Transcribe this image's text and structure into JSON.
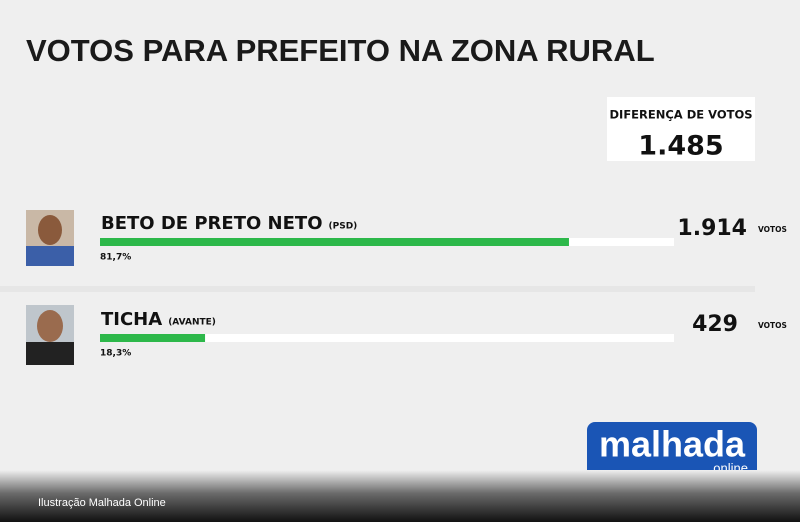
{
  "chart_data": {
    "type": "bar",
    "title": "VOTOS PARA PREFEITO NA ZONA RURAL",
    "difference": {
      "label": "DIFERENÇA DE VOTOS",
      "text": "1.485"
    },
    "categories": [
      "BETO DE PRETO NETO",
      "TICHA"
    ],
    "parties": [
      "(PSD)",
      "(AVANTE)"
    ],
    "values": [
      81.7,
      18.3
    ],
    "value_labels": [
      "81,7%",
      "18,3%"
    ],
    "votes": [
      "1.914",
      "429"
    ],
    "votes_unit": "VOTOS",
    "color": "#2db84a",
    "xlim": [
      0,
      100
    ],
    "logo": {
      "text": "malhada",
      "subtext": "online"
    },
    "credit": "Ilustração Malhada Online"
  }
}
